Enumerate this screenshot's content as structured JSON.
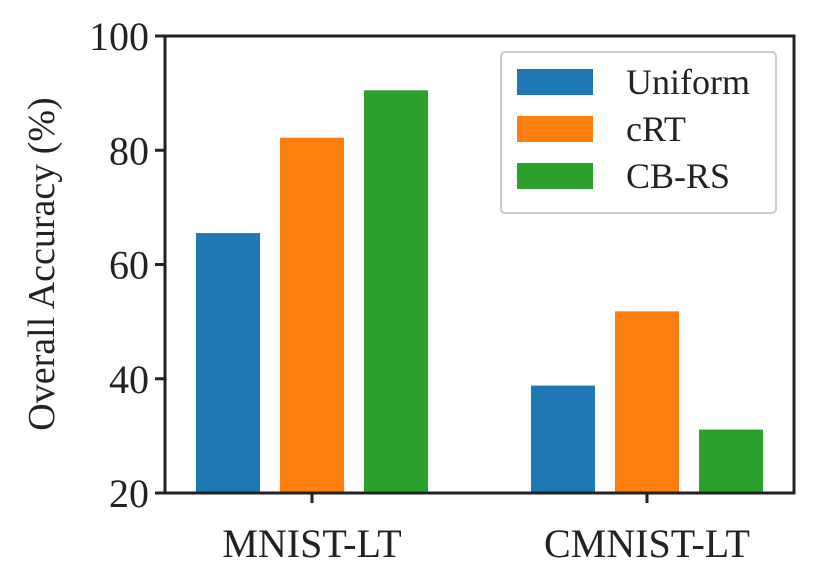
{
  "chart_data": {
    "type": "bar",
    "categories": [
      "MNIST-LT",
      "CMNIST-LT"
    ],
    "series": [
      {
        "name": "Uniform",
        "color": "#1f77b4",
        "values": [
          65.5,
          38.8
        ]
      },
      {
        "name": "cRT",
        "color": "#ff7f0e",
        "values": [
          82.2,
          51.8
        ]
      },
      {
        "name": "CB-RS",
        "color": "#2ca02c",
        "values": [
          90.5,
          31.1
        ]
      }
    ],
    "title": "",
    "xlabel": "",
    "ylabel": "Overall Accuracy (%)",
    "ylim": [
      20,
      100
    ],
    "yticks": [
      20,
      40,
      60,
      80,
      100
    ],
    "grid": false,
    "legend_position": "top-right"
  }
}
